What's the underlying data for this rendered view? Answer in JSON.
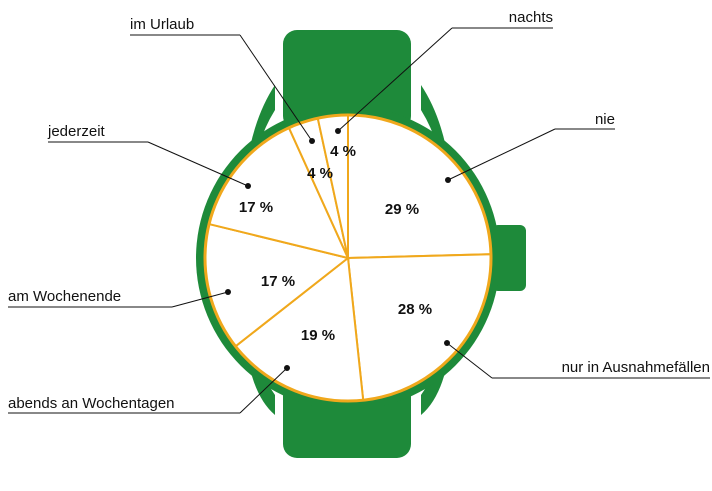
{
  "chart_data": {
    "type": "pie",
    "categories": [
      "nie",
      "nur in Ausnahmefällen",
      "abends an Wochentagen",
      "am Wochenende",
      "jederzeit",
      "im Urlaub",
      "nachts"
    ],
    "values": [
      29,
      28,
      19,
      17,
      17,
      4,
      4
    ],
    "value_labels": [
      "29 %",
      "28 %",
      "19 %",
      "17 %",
      "17 %",
      "4 %",
      "4 %"
    ],
    "color": "#ffffff",
    "edge_color": "#f0a81c"
  }
}
